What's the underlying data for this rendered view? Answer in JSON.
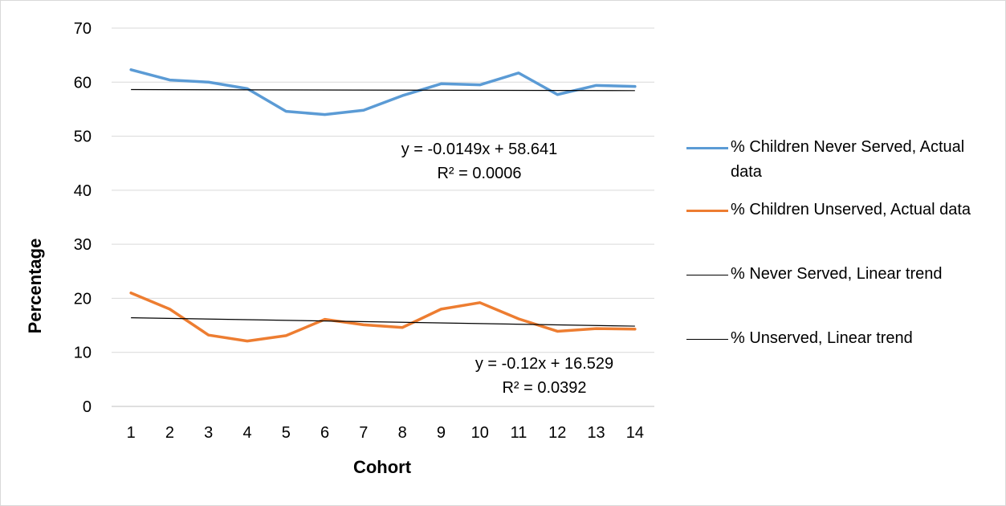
{
  "chart_data": {
    "type": "line",
    "xlabel": "Cohort",
    "ylabel": "Percentage",
    "x": [
      1,
      2,
      3,
      4,
      5,
      6,
      7,
      8,
      9,
      10,
      11,
      12,
      13,
      14
    ],
    "ylim": [
      0,
      70
    ],
    "yticks": [
      0,
      10,
      20,
      30,
      40,
      50,
      60,
      70
    ],
    "grid": true,
    "legend_position": "right",
    "series": [
      {
        "name": "% Children Never Served, Actual data",
        "color": "#5b9bd5",
        "values": [
          62.3,
          60.4,
          60.0,
          58.8,
          54.6,
          54.0,
          54.8,
          57.5,
          59.7,
          59.5,
          61.7,
          57.7,
          59.4,
          59.2
        ]
      },
      {
        "name": "% Children Unserved, Actual data",
        "color": "#ed7d31",
        "values": [
          21.0,
          18.0,
          13.2,
          12.1,
          13.1,
          16.1,
          15.1,
          14.6,
          18.0,
          19.2,
          16.2,
          13.9,
          14.4,
          14.3
        ]
      },
      {
        "name": "% Never Served, Linear trend",
        "color": "#000000",
        "trend": {
          "slope": -0.0149,
          "intercept": 58.641
        },
        "equation": "y = -0.0149x + 58.641",
        "r2": "R² = 0.0006"
      },
      {
        "name": "% Unserved, Linear trend",
        "color": "#000000",
        "trend": {
          "slope": -0.12,
          "intercept": 16.529
        },
        "equation": "y = -0.12x + 16.529",
        "r2": "R² = 0.0392"
      }
    ]
  }
}
